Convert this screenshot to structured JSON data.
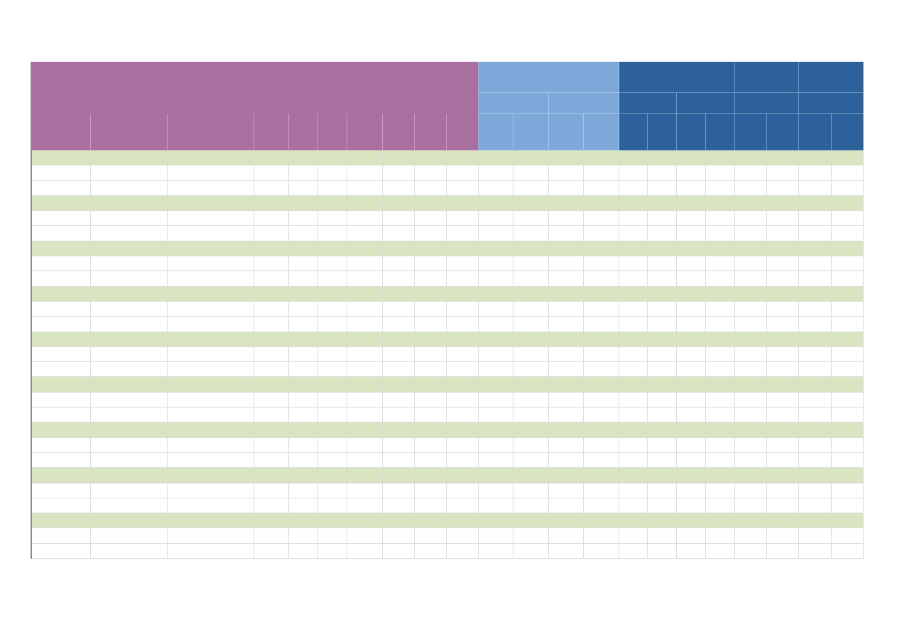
{
  "sheet": {
    "colors": {
      "group_a": "#a96f9f",
      "group_b": "#7ea8da",
      "group_c": "#2d619b",
      "band_row": "#d9e4c1",
      "plain_row": "#ffffff",
      "grid_line": "#dcdcdc"
    },
    "column_groups": [
      "group_a",
      "group_b",
      "group_c"
    ],
    "band_pattern": [
      "band",
      "plain",
      "plain"
    ],
    "body_row_count": 27,
    "headers": [],
    "rows": []
  }
}
